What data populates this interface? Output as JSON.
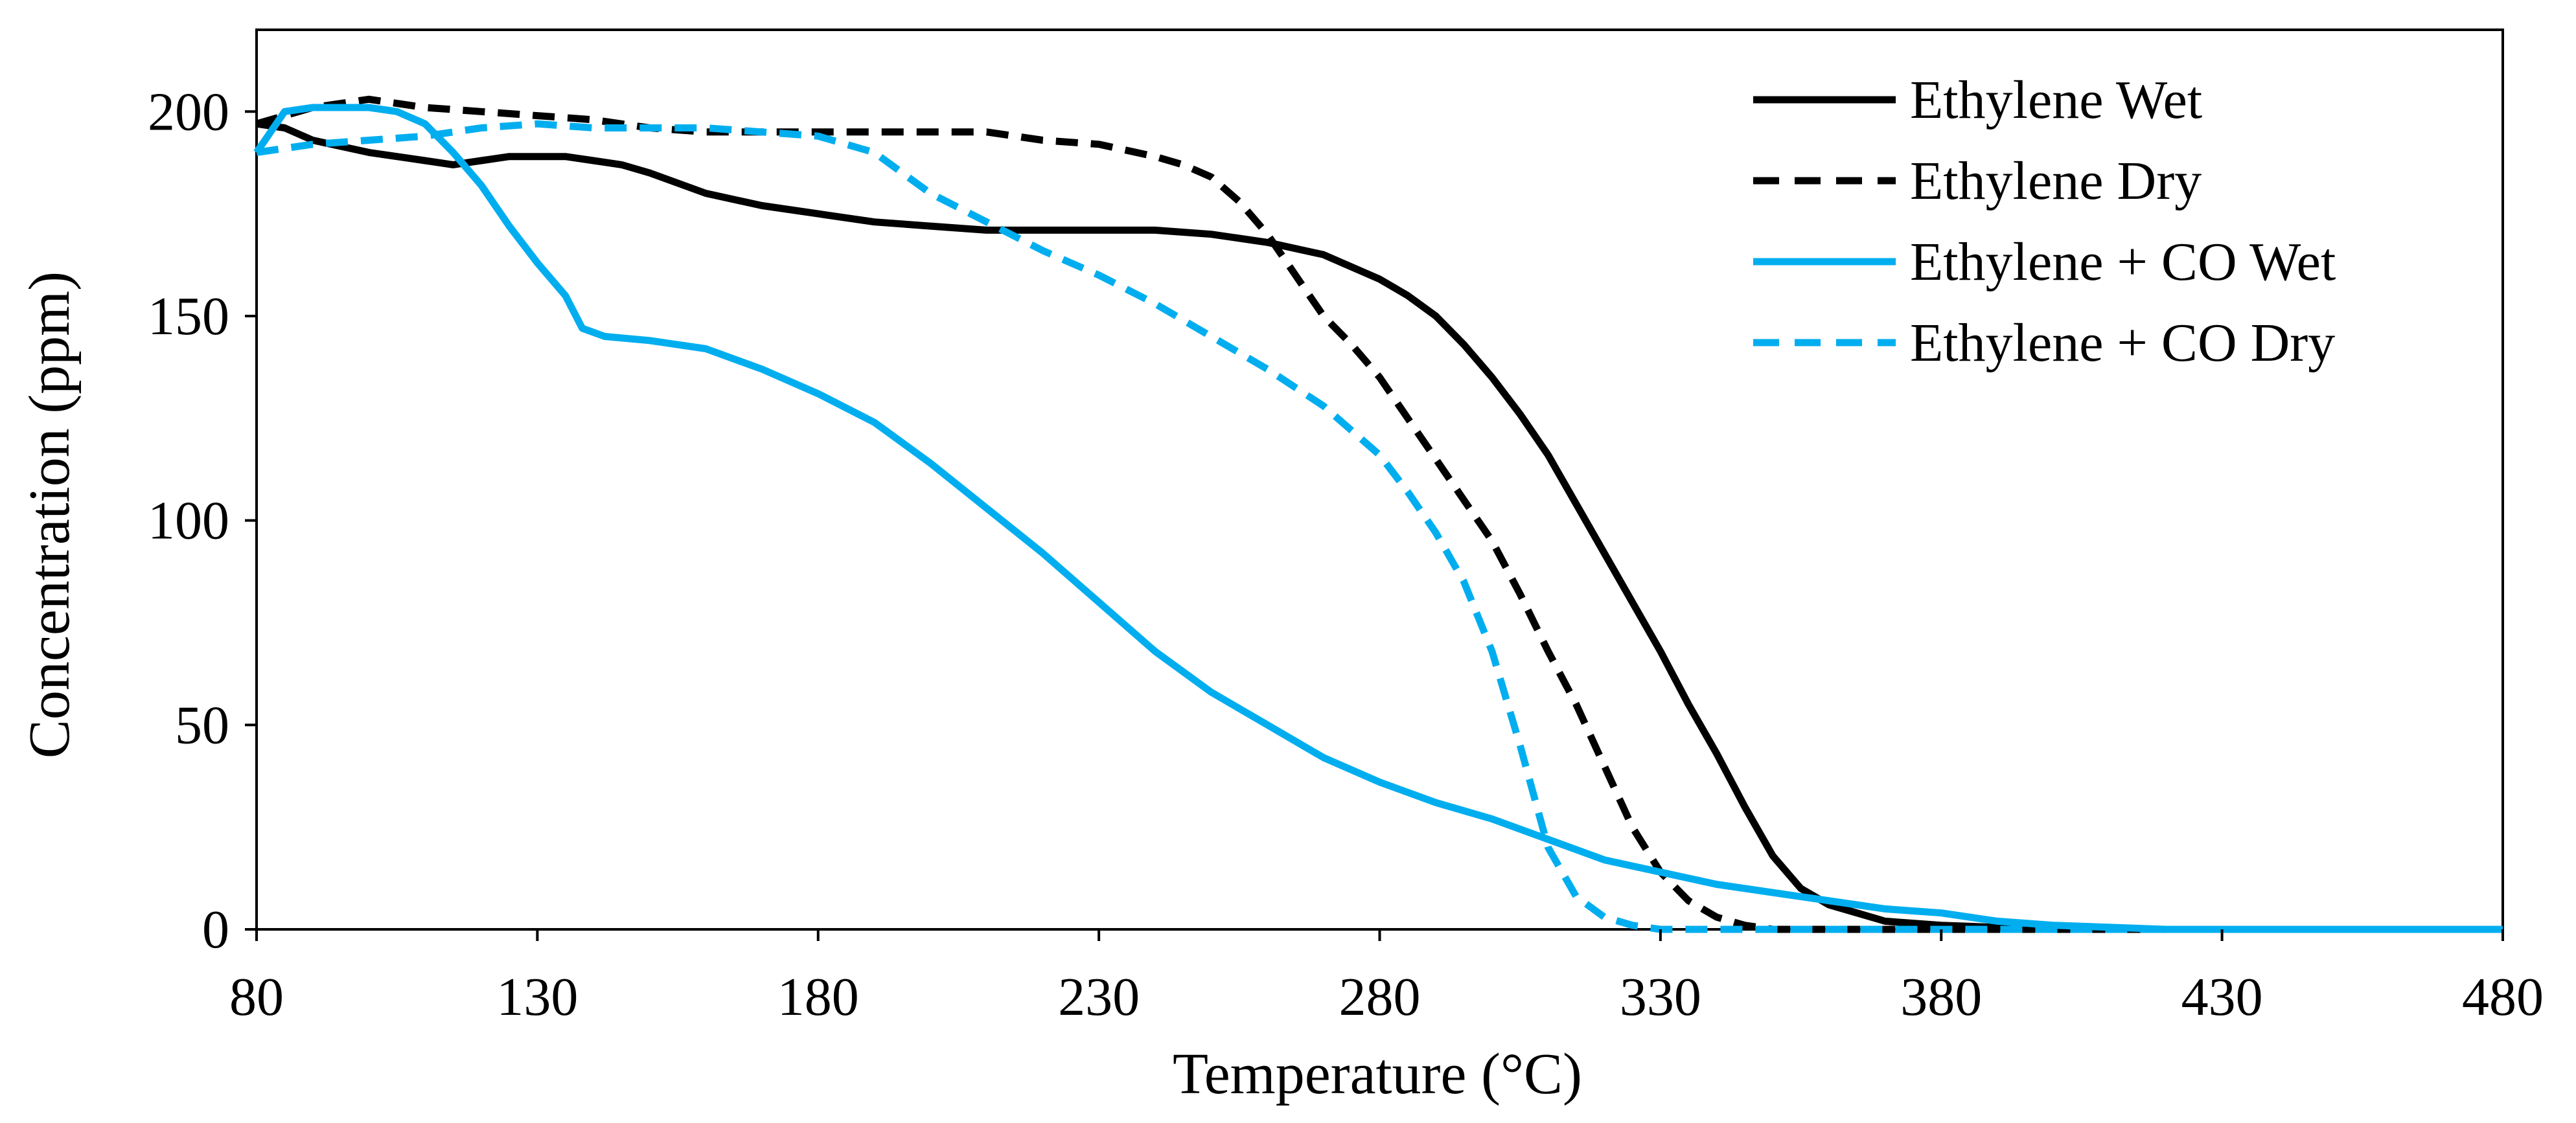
{
  "chart_data": {
    "type": "line",
    "title": "",
    "xlabel": "Temperature (°C)",
    "ylabel": "Concentration (ppm)",
    "xlim": [
      80,
      480
    ],
    "ylim": [
      0,
      220
    ],
    "x_ticks": [
      80,
      130,
      180,
      230,
      280,
      330,
      380,
      430,
      480
    ],
    "y_ticks": [
      0,
      50,
      100,
      150,
      200
    ],
    "legend_position": "top-right",
    "grid": false,
    "series": [
      {
        "name": "Ethylene Wet",
        "color": "#000000",
        "style": "solid",
        "points": [
          [
            80,
            197
          ],
          [
            85,
            196
          ],
          [
            90,
            193
          ],
          [
            100,
            190
          ],
          [
            110,
            188
          ],
          [
            115,
            187
          ],
          [
            120,
            188
          ],
          [
            125,
            189
          ],
          [
            130,
            189
          ],
          [
            135,
            189
          ],
          [
            140,
            188
          ],
          [
            145,
            187
          ],
          [
            150,
            185
          ],
          [
            160,
            180
          ],
          [
            170,
            177
          ],
          [
            180,
            175
          ],
          [
            190,
            173
          ],
          [
            200,
            172
          ],
          [
            210,
            171
          ],
          [
            220,
            171
          ],
          [
            230,
            171
          ],
          [
            240,
            171
          ],
          [
            250,
            170
          ],
          [
            260,
            168
          ],
          [
            270,
            165
          ],
          [
            280,
            159
          ],
          [
            285,
            155
          ],
          [
            290,
            150
          ],
          [
            295,
            143
          ],
          [
            300,
            135
          ],
          [
            305,
            126
          ],
          [
            310,
            116
          ],
          [
            315,
            104
          ],
          [
            320,
            92
          ],
          [
            325,
            80
          ],
          [
            330,
            68
          ],
          [
            335,
            55
          ],
          [
            340,
            43
          ],
          [
            345,
            30
          ],
          [
            350,
            18
          ],
          [
            355,
            10
          ],
          [
            360,
            6
          ],
          [
            365,
            4
          ],
          [
            370,
            2
          ],
          [
            380,
            1
          ],
          [
            400,
            0
          ],
          [
            480,
            0
          ]
        ]
      },
      {
        "name": "Ethylene Dry",
        "color": "#000000",
        "style": "dashed",
        "points": [
          [
            80,
            197
          ],
          [
            85,
            199
          ],
          [
            90,
            201
          ],
          [
            100,
            203
          ],
          [
            110,
            201
          ],
          [
            120,
            200
          ],
          [
            130,
            199
          ],
          [
            140,
            198
          ],
          [
            150,
            196
          ],
          [
            160,
            195
          ],
          [
            170,
            195
          ],
          [
            180,
            195
          ],
          [
            190,
            195
          ],
          [
            200,
            195
          ],
          [
            210,
            195
          ],
          [
            220,
            193
          ],
          [
            230,
            192
          ],
          [
            240,
            189
          ],
          [
            245,
            187
          ],
          [
            250,
            184
          ],
          [
            255,
            178
          ],
          [
            260,
            170
          ],
          [
            265,
            160
          ],
          [
            270,
            150
          ],
          [
            275,
            143
          ],
          [
            280,
            135
          ],
          [
            285,
            125
          ],
          [
            290,
            115
          ],
          [
            295,
            105
          ],
          [
            300,
            95
          ],
          [
            305,
            82
          ],
          [
            310,
            68
          ],
          [
            315,
            55
          ],
          [
            320,
            40
          ],
          [
            325,
            25
          ],
          [
            330,
            14
          ],
          [
            335,
            7
          ],
          [
            340,
            3
          ],
          [
            345,
            1
          ],
          [
            350,
            0
          ],
          [
            480,
            0
          ]
        ]
      },
      {
        "name": "Ethylene + CO Wet",
        "color": "#00AEEF",
        "style": "solid",
        "points": [
          [
            80,
            190
          ],
          [
            85,
            200
          ],
          [
            90,
            201
          ],
          [
            100,
            201
          ],
          [
            105,
            200
          ],
          [
            110,
            197
          ],
          [
            115,
            190
          ],
          [
            120,
            182
          ],
          [
            125,
            172
          ],
          [
            130,
            163
          ],
          [
            135,
            155
          ],
          [
            138,
            147
          ],
          [
            142,
            145
          ],
          [
            150,
            144
          ],
          [
            160,
            142
          ],
          [
            170,
            137
          ],
          [
            180,
            131
          ],
          [
            190,
            124
          ],
          [
            200,
            114
          ],
          [
            210,
            103
          ],
          [
            220,
            92
          ],
          [
            230,
            80
          ],
          [
            240,
            68
          ],
          [
            250,
            58
          ],
          [
            260,
            50
          ],
          [
            270,
            42
          ],
          [
            280,
            36
          ],
          [
            290,
            31
          ],
          [
            300,
            27
          ],
          [
            310,
            22
          ],
          [
            320,
            17
          ],
          [
            330,
            14
          ],
          [
            340,
            11
          ],
          [
            350,
            9
          ],
          [
            360,
            7
          ],
          [
            370,
            5
          ],
          [
            380,
            4
          ],
          [
            390,
            2
          ],
          [
            400,
            1
          ],
          [
            420,
            0
          ],
          [
            480,
            0
          ]
        ]
      },
      {
        "name": "Ethylene + CO Dry",
        "color": "#00AEEF",
        "style": "dashed",
        "points": [
          [
            80,
            190
          ],
          [
            85,
            191
          ],
          [
            90,
            192
          ],
          [
            100,
            193
          ],
          [
            110,
            194
          ],
          [
            120,
            196
          ],
          [
            130,
            197
          ],
          [
            140,
            196
          ],
          [
            150,
            196
          ],
          [
            160,
            196
          ],
          [
            170,
            195
          ],
          [
            180,
            194
          ],
          [
            190,
            190
          ],
          [
            195,
            185
          ],
          [
            200,
            180
          ],
          [
            210,
            173
          ],
          [
            220,
            166
          ],
          [
            230,
            160
          ],
          [
            240,
            153
          ],
          [
            250,
            145
          ],
          [
            260,
            137
          ],
          [
            270,
            128
          ],
          [
            280,
            116
          ],
          [
            285,
            107
          ],
          [
            290,
            97
          ],
          [
            295,
            85
          ],
          [
            300,
            68
          ],
          [
            305,
            45
          ],
          [
            310,
            20
          ],
          [
            315,
            8
          ],
          [
            320,
            3
          ],
          [
            325,
            1
          ],
          [
            330,
            0
          ],
          [
            480,
            0
          ]
        ]
      }
    ]
  }
}
